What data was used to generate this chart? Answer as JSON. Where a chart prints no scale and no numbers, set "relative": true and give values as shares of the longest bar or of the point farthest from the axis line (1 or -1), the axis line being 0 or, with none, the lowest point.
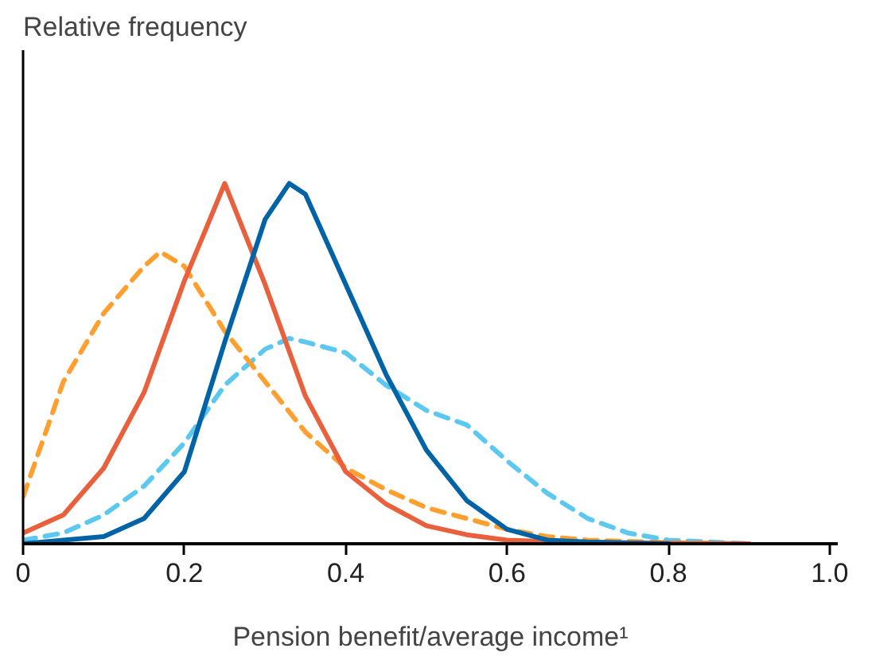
{
  "chart_data": {
    "type": "line",
    "relative": true,
    "annotations": [
      "Relative frequency"
    ],
    "xlabel": "Pension benefit/average income¹",
    "xlim": [
      0,
      1.01
    ],
    "xticks": [
      0,
      0.2,
      0.4,
      0.6,
      0.8,
      {
        "value": 1,
        "label": "1.0"
      }
    ],
    "grid": false,
    "series": [
      {
        "color": "#5cc8f0",
        "line_style": "dashed",
        "x": [
          0,
          0.05,
          0.1,
          0.15,
          0.2,
          0.25,
          0.3,
          0.33,
          0.35,
          0.4,
          0.45,
          0.5,
          0.55,
          0.6,
          0.65,
          0.7,
          0.75,
          0.8,
          0.9
        ],
        "values": [
          0.01,
          0.03,
          0.08,
          0.16,
          0.28,
          0.44,
          0.54,
          0.57,
          0.56,
          0.53,
          0.44,
          0.37,
          0.33,
          0.23,
          0.14,
          0.07,
          0.03,
          0.01,
          0
        ]
      },
      {
        "color": "#ff9f2f",
        "line_style": "dashed",
        "x": [
          0,
          0.05,
          0.1,
          0.15,
          0.17,
          0.2,
          0.25,
          0.3,
          0.35,
          0.4,
          0.45,
          0.5,
          0.55,
          0.6,
          0.65,
          0.7,
          0.8,
          0.9
        ],
        "values": [
          0.13,
          0.45,
          0.64,
          0.77,
          0.81,
          0.77,
          0.59,
          0.45,
          0.31,
          0.21,
          0.15,
          0.1,
          0.07,
          0.04,
          0.02,
          0.01,
          0.003,
          0
        ]
      },
      {
        "color": "#e8603c",
        "line_style": "solid",
        "x": [
          0,
          0.05,
          0.1,
          0.15,
          0.2,
          0.25,
          0.3,
          0.35,
          0.4,
          0.45,
          0.5,
          0.55,
          0.6,
          0.7,
          0.9
        ],
        "values": [
          0.03,
          0.08,
          0.21,
          0.42,
          0.73,
          1,
          0.72,
          0.41,
          0.2,
          0.11,
          0.05,
          0.025,
          0.01,
          0.003,
          0
        ]
      },
      {
        "color": "#0063a6",
        "line_style": "solid",
        "x": [
          0,
          0.05,
          0.1,
          0.15,
          0.2,
          0.25,
          0.3,
          0.33,
          0.35,
          0.4,
          0.45,
          0.5,
          0.55,
          0.6,
          0.65,
          0.7,
          0.8
        ],
        "values": [
          0,
          0.01,
          0.02,
          0.07,
          0.2,
          0.56,
          0.9,
          1,
          0.97,
          0.72,
          0.47,
          0.26,
          0.12,
          0.04,
          0.01,
          0.005,
          0
        ]
      }
    ]
  }
}
